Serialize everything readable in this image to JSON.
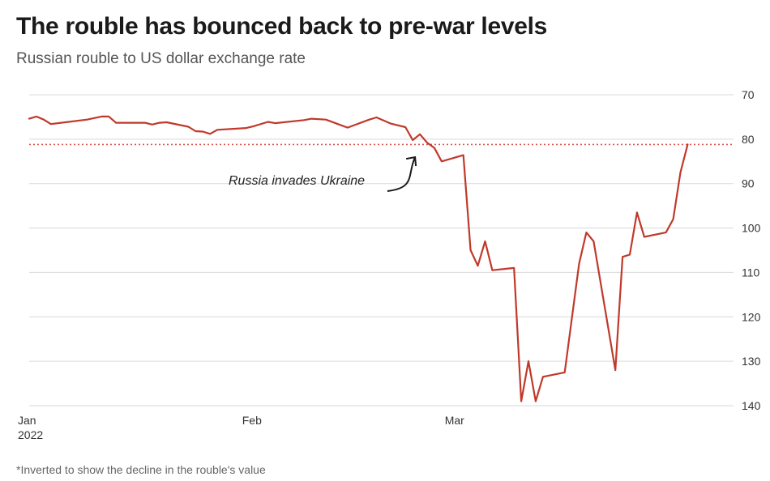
{
  "title": "The rouble has bounced back to pre-war levels",
  "subtitle": "Russian rouble to US dollar exchange rate",
  "footnote": "*Inverted to show the decline in the rouble's value",
  "colors": {
    "line": "#c0392b",
    "reference_line": "#d9534f",
    "grid": "#d9d9d9",
    "annotation": "#1a1a1a"
  },
  "chart_data": {
    "type": "line",
    "y_inverted": true,
    "ylim": [
      70,
      140
    ],
    "yticks": [
      70,
      80,
      90,
      100,
      110,
      120,
      130,
      140
    ],
    "y_axis_side": "right",
    "grid": true,
    "x_tick_labels": [
      {
        "label": "Jan",
        "sublabel": "2022",
        "date": "2022-01-01"
      },
      {
        "label": "Feb",
        "sublabel": "",
        "date": "2022-02-01"
      },
      {
        "label": "Mar",
        "sublabel": "",
        "date": "2022-03-01"
      }
    ],
    "x_range": [
      "2022-01-01",
      "2022-04-08"
    ],
    "reference_line": {
      "y": 81.2,
      "style": "dotted"
    },
    "annotation": {
      "text": "Russia invades Ukraine",
      "date": "2022-02-24",
      "y": 81.5
    },
    "series": [
      {
        "points": [
          [
            "2022-01-01",
            75.4
          ],
          [
            "2022-01-02",
            74.9
          ],
          [
            "2022-01-03",
            75.6
          ],
          [
            "2022-01-04",
            76.6
          ],
          [
            "2022-01-06",
            76.2
          ],
          [
            "2022-01-09",
            75.6
          ],
          [
            "2022-01-11",
            74.9
          ],
          [
            "2022-01-12",
            74.9
          ],
          [
            "2022-01-13",
            76.3
          ],
          [
            "2022-01-17",
            76.3
          ],
          [
            "2022-01-18",
            76.7
          ],
          [
            "2022-01-19",
            76.3
          ],
          [
            "2022-01-20",
            76.2
          ],
          [
            "2022-01-23",
            77.2
          ],
          [
            "2022-01-24",
            78.2
          ],
          [
            "2022-01-25",
            78.3
          ],
          [
            "2022-01-26",
            78.8
          ],
          [
            "2022-01-27",
            77.9
          ],
          [
            "2022-01-31",
            77.5
          ],
          [
            "2022-02-01",
            77.1
          ],
          [
            "2022-02-03",
            76.1
          ],
          [
            "2022-02-04",
            76.4
          ],
          [
            "2022-02-08",
            75.7
          ],
          [
            "2022-02-09",
            75.4
          ],
          [
            "2022-02-11",
            75.6
          ],
          [
            "2022-02-13",
            76.8
          ],
          [
            "2022-02-14",
            77.4
          ],
          [
            "2022-02-17",
            75.6
          ],
          [
            "2022-02-18",
            75.1
          ],
          [
            "2022-02-20",
            76.5
          ],
          [
            "2022-02-22",
            77.3
          ],
          [
            "2022-02-23",
            80.2
          ],
          [
            "2022-02-24",
            78.9
          ],
          [
            "2022-02-25",
            80.8
          ],
          [
            "2022-02-26",
            82.0
          ],
          [
            "2022-02-27",
            85.0
          ],
          [
            "2022-03-02",
            83.6
          ],
          [
            "2022-03-03",
            105.0
          ],
          [
            "2022-03-04",
            108.5
          ],
          [
            "2022-03-05",
            103.0
          ],
          [
            "2022-03-06",
            109.5
          ],
          [
            "2022-03-09",
            109.0
          ],
          [
            "2022-03-10",
            139.0
          ],
          [
            "2022-03-11",
            130.0
          ],
          [
            "2022-03-12",
            139.0
          ],
          [
            "2022-03-13",
            133.5
          ],
          [
            "2022-03-16",
            132.5
          ],
          [
            "2022-03-18",
            108.0
          ],
          [
            "2022-03-19",
            101.0
          ],
          [
            "2022-03-20",
            103.0
          ],
          [
            "2022-03-23",
            132.0
          ],
          [
            "2022-03-24",
            106.5
          ],
          [
            "2022-03-25",
            106.0
          ],
          [
            "2022-03-26",
            96.5
          ],
          [
            "2022-03-27",
            102.0
          ],
          [
            "2022-03-30",
            101.0
          ],
          [
            "2022-03-31",
            98.0
          ],
          [
            "2022-04-01",
            87.5
          ],
          [
            "2022-04-02",
            81.2
          ]
        ]
      }
    ]
  }
}
